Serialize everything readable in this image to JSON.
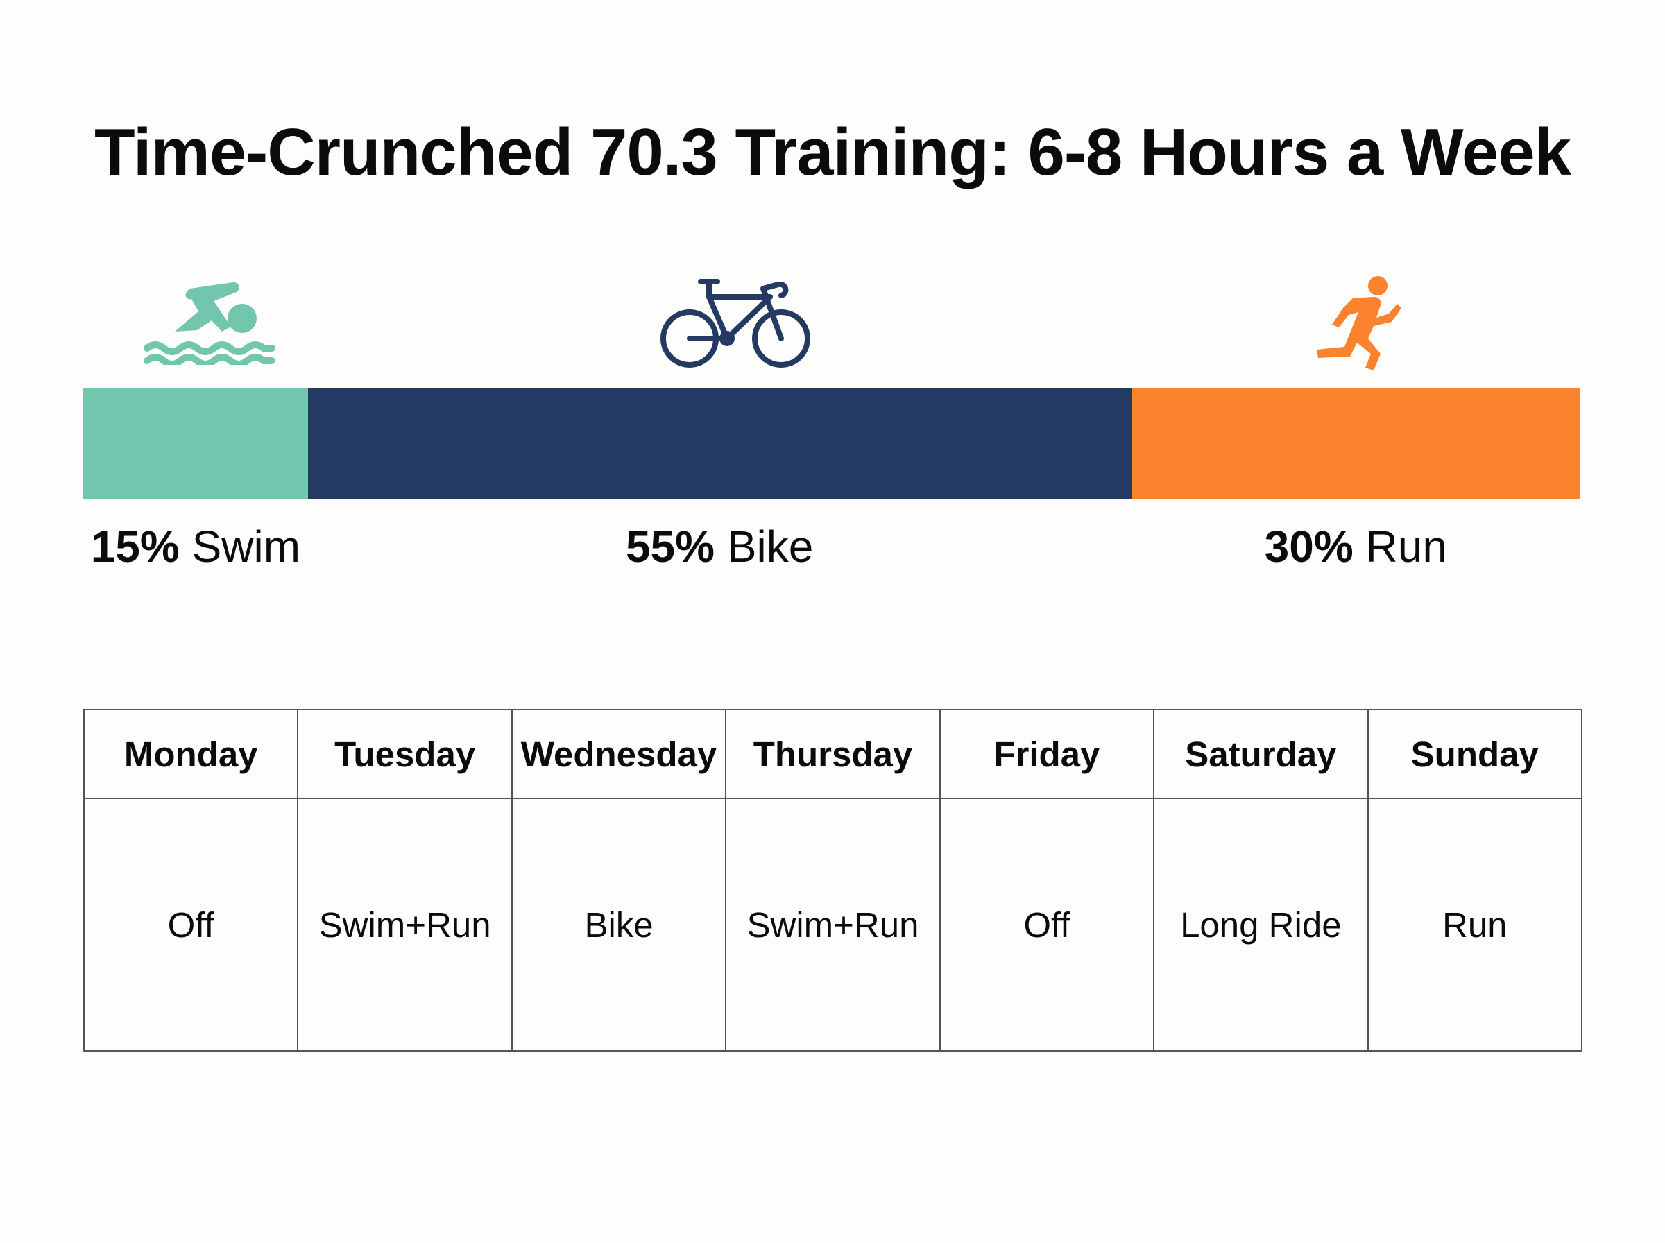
{
  "title": "Time-Crunched 70.3 Training: 6-8 Hours a Week",
  "colors": {
    "swim": "#72c6ad",
    "bike": "#243a63",
    "run": "#fb822e"
  },
  "chart_data": {
    "type": "bar",
    "orientation": "horizontal-stacked-100",
    "categories": [
      "Swim",
      "Bike",
      "Run"
    ],
    "series": [
      {
        "name": "Swim",
        "value": 15,
        "color": "#72c6ad",
        "icon": "swimmer-icon",
        "pct_label": "15%",
        "name_label": "Swim"
      },
      {
        "name": "Bike",
        "value": 55,
        "color": "#243a63",
        "icon": "bicycle-icon",
        "pct_label": "55%",
        "name_label": "Bike"
      },
      {
        "name": "Run",
        "value": 30,
        "color": "#fb822e",
        "icon": "runner-icon",
        "pct_label": "30%",
        "name_label": "Run"
      }
    ],
    "total": 100,
    "legend": "none",
    "grid": false
  },
  "schedule": {
    "days": [
      "Monday",
      "Tuesday",
      "Wednesday",
      "Thursday",
      "Friday",
      "Saturday",
      "Sunday"
    ],
    "workouts": [
      "Off",
      "Swim+Run",
      "Bike",
      "Swim+Run",
      "Off",
      "Long Ride",
      "Run"
    ]
  }
}
